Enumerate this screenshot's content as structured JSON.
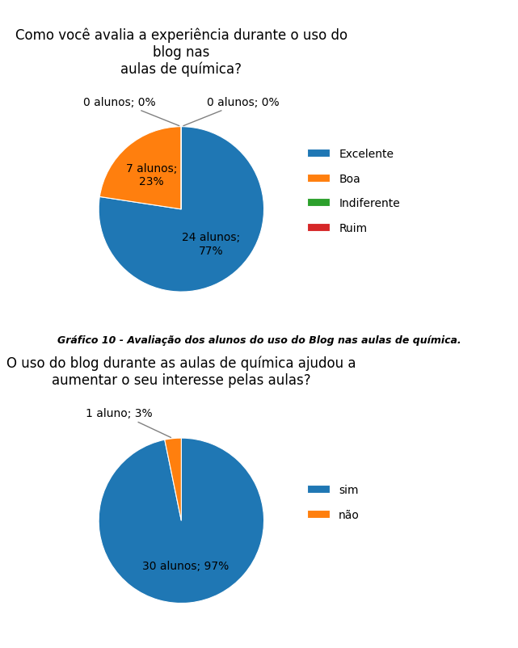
{
  "chart_data": [
    {
      "type": "pie",
      "title": "Como você avalia a experiência durante o uso do blog nas\naulas de química?",
      "categories": [
        "Excelente",
        "Boa",
        "Indiferente",
        "Ruim"
      ],
      "values": [
        24,
        7,
        0.0001,
        0.0001
      ],
      "value_labels": [
        "24 alunos;\n77%",
        "7 alunos;\n23%",
        "0 alunos; 0%",
        "0 alunos; 0%"
      ],
      "data_labels": true,
      "legend": "right"
    },
    {
      "type": "pie",
      "title": "O uso do blog durante as aulas de química ajudou a\naumentar o seu interesse pelas aulas?",
      "categories": [
        "sim",
        "não"
      ],
      "values": [
        30,
        1
      ],
      "value_labels": [
        "30 alunos; 97%",
        "1 aluno; 3%"
      ],
      "data_labels": true,
      "legend": "right"
    }
  ],
  "caption": "Gráfico 10 - Avaliação dos alunos do uso do Blog nas aulas de química."
}
